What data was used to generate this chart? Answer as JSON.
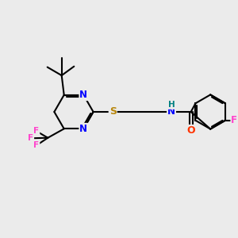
{
  "bg_color": "#ebebeb",
  "bond_color": "#000000",
  "bond_width": 1.5,
  "N_color": "#0000ff",
  "S_color": "#b8860b",
  "O_color": "#ff3300",
  "F_color": "#ff44cc",
  "H_color": "#008080",
  "figsize": [
    3.0,
    3.0
  ],
  "dpi": 100,
  "xlim": [
    0,
    10
  ],
  "ylim": [
    0,
    10
  ]
}
